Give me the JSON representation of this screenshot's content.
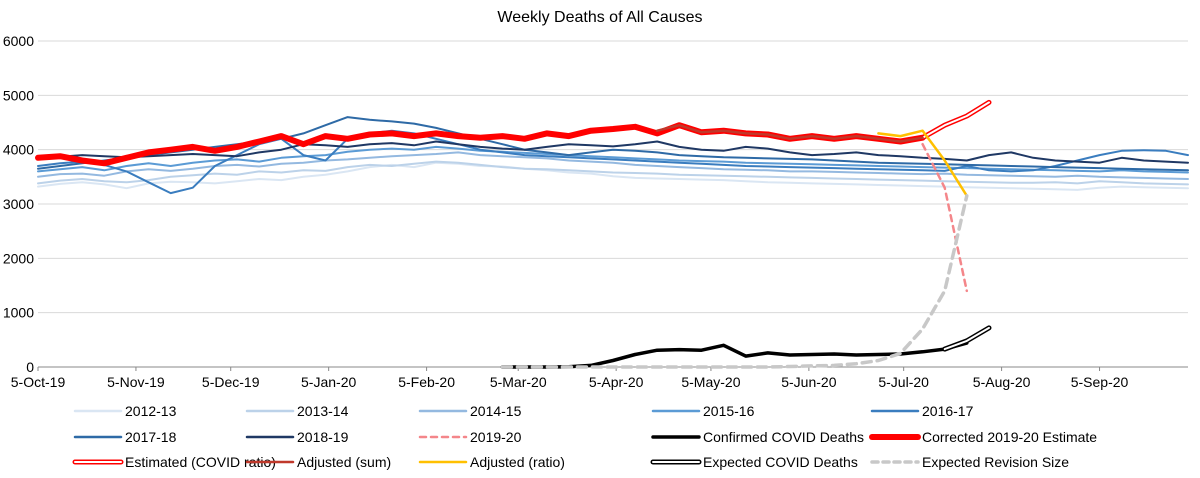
{
  "chart_data": {
    "type": "line",
    "title": "Weekly Deaths of All Causes",
    "xlabel": "",
    "ylabel": "",
    "ylim": [
      0,
      6000
    ],
    "yticks": [
      0,
      1000,
      2000,
      3000,
      4000,
      5000,
      6000
    ],
    "x_start": "2019-10-05",
    "x_end": "2020-10-03",
    "x_weeks": 52,
    "xtick_labels": [
      "5-Oct-19",
      "5-Nov-19",
      "5-Dec-19",
      "5-Jan-20",
      "5-Feb-20",
      "5-Mar-20",
      "5-Apr-20",
      "5-May-20",
      "5-Jun-20",
      "5-Jul-20",
      "5-Aug-20",
      "5-Sep-20"
    ],
    "xtick_dates": [
      "2019-10-05",
      "2019-11-05",
      "2019-12-05",
      "2020-01-05",
      "2020-02-05",
      "2020-03-05",
      "2020-04-05",
      "2020-05-05",
      "2020-06-05",
      "2020-07-05",
      "2020-08-05",
      "2020-09-05"
    ],
    "grid": "horizontal",
    "legend_position": "bottom",
    "series": [
      {
        "name": "2012-13",
        "color": "#dae6f3",
        "style": "solid",
        "values": [
          3320,
          3370,
          3400,
          3360,
          3290,
          3380,
          3410,
          3400,
          3380,
          3420,
          3460,
          3440,
          3500,
          3540,
          3600,
          3680,
          3720,
          3680,
          3760,
          3740,
          3700,
          3690,
          3650,
          3620,
          3580,
          3560,
          3510,
          3480,
          3470,
          3460,
          3450,
          3440,
          3420,
          3400,
          3390,
          3380,
          3370,
          3360,
          3350,
          3340,
          3330,
          3320,
          3310,
          3300,
          3290,
          3280,
          3270,
          3260,
          3300,
          3320,
          3310,
          3300,
          3290
        ]
      },
      {
        "name": "2013-14",
        "color": "#bcd2e9",
        "style": "solid",
        "values": [
          3380,
          3430,
          3460,
          3420,
          3400,
          3440,
          3500,
          3530,
          3560,
          3540,
          3600,
          3580,
          3620,
          3610,
          3680,
          3720,
          3700,
          3740,
          3780,
          3760,
          3720,
          3680,
          3650,
          3640,
          3620,
          3600,
          3580,
          3570,
          3560,
          3540,
          3530,
          3520,
          3510,
          3500,
          3490,
          3480,
          3470,
          3460,
          3450,
          3440,
          3430,
          3420,
          3410,
          3400,
          3390,
          3390,
          3400,
          3380,
          3420,
          3400,
          3380,
          3370,
          3360
        ]
      },
      {
        "name": "2014-15",
        "color": "#94b9e0",
        "style": "solid",
        "values": [
          3500,
          3550,
          3560,
          3520,
          3600,
          3640,
          3610,
          3650,
          3700,
          3720,
          3690,
          3740,
          3760,
          3800,
          3820,
          3850,
          3880,
          3900,
          3920,
          3950,
          3900,
          3880,
          3860,
          3840,
          3800,
          3780,
          3760,
          3720,
          3700,
          3680,
          3660,
          3640,
          3630,
          3620,
          3600,
          3600,
          3590,
          3580,
          3570,
          3560,
          3550,
          3560,
          3540,
          3530,
          3520,
          3510,
          3500,
          3520,
          3500,
          3490,
          3480,
          3470,
          3460
        ]
      },
      {
        "name": "2015-16",
        "color": "#5b9bd5",
        "style": "solid",
        "values": [
          3600,
          3640,
          3680,
          3620,
          3700,
          3750,
          3700,
          3760,
          3800,
          3820,
          3780,
          3850,
          3880,
          3900,
          3960,
          4000,
          4020,
          4000,
          4050,
          4020,
          3980,
          3960,
          3940,
          3920,
          3900,
          3880,
          3860,
          3840,
          3820,
          3800,
          3790,
          3780,
          3760,
          3750,
          3740,
          3730,
          3720,
          3710,
          3700,
          3690,
          3680,
          3670,
          3660,
          3650,
          3640,
          3630,
          3620,
          3610,
          3600,
          3620,
          3600,
          3590,
          3580
        ]
      },
      {
        "name": "2016-17",
        "color": "#3a7dbf",
        "style": "solid",
        "values": [
          3700,
          3750,
          3780,
          3720,
          3600,
          3400,
          3200,
          3300,
          3700,
          3900,
          4100,
          4200,
          3900,
          3800,
          4200,
          4300,
          4350,
          4300,
          4200,
          4100,
          4000,
          3950,
          3900,
          3880,
          3860,
          3840,
          3820,
          3800,
          3780,
          3760,
          3740,
          3720,
          3700,
          3690,
          3680,
          3670,
          3660,
          3650,
          3640,
          3630,
          3620,
          3610,
          3700,
          3620,
          3600,
          3620,
          3700,
          3800,
          3900,
          3980,
          3990,
          3980,
          3900
        ]
      },
      {
        "name": "2017-18",
        "color": "#2e6aa6",
        "style": "solid",
        "values": [
          3650,
          3700,
          3750,
          3800,
          3850,
          3900,
          3950,
          4000,
          4050,
          4100,
          4150,
          4200,
          4300,
          4450,
          4600,
          4550,
          4520,
          4480,
          4400,
          4300,
          4200,
          4100,
          4000,
          3950,
          3900,
          3950,
          4000,
          3980,
          3950,
          3900,
          3880,
          3860,
          3850,
          3840,
          3830,
          3820,
          3800,
          3780,
          3760,
          3750,
          3740,
          3730,
          3720,
          3710,
          3700,
          3690,
          3680,
          3670,
          3660,
          3650,
          3640,
          3630,
          3620
        ]
      },
      {
        "name": "2018-19",
        "color": "#1f3864",
        "style": "solid",
        "values": [
          3850,
          3870,
          3900,
          3880,
          3860,
          3880,
          3900,
          3920,
          3900,
          3880,
          3950,
          4000,
          4100,
          4080,
          4050,
          4100,
          4120,
          4080,
          4150,
          4100,
          4050,
          4020,
          4000,
          4050,
          4100,
          4080,
          4060,
          4100,
          4150,
          4050,
          4000,
          3980,
          4050,
          4020,
          3950,
          3900,
          3920,
          3950,
          3900,
          3880,
          3850,
          3830,
          3800,
          3900,
          3950,
          3850,
          3800,
          3780,
          3760,
          3850,
          3800,
          3780,
          3760
        ]
      },
      {
        "name": "2019-20",
        "color": "#f4868a",
        "style": "dashed",
        "values": [
          null,
          null,
          null,
          null,
          null,
          null,
          null,
          null,
          null,
          null,
          null,
          null,
          null,
          null,
          null,
          null,
          null,
          null,
          null,
          null,
          null,
          null,
          null,
          null,
          null,
          null,
          null,
          null,
          null,
          null,
          null,
          null,
          null,
          null,
          null,
          null,
          null,
          null,
          null,
          null,
          4100,
          3300,
          1400,
          null,
          null,
          null,
          null,
          null,
          null,
          null,
          null,
          null,
          null
        ]
      },
      {
        "name": "Confirmed COVID Deaths",
        "color": "#000000",
        "style": "solid",
        "values": [
          null,
          null,
          null,
          null,
          null,
          null,
          null,
          null,
          null,
          null,
          null,
          null,
          null,
          null,
          null,
          null,
          null,
          null,
          null,
          null,
          null,
          0,
          0,
          0,
          5,
          30,
          120,
          230,
          310,
          320,
          310,
          400,
          200,
          260,
          220,
          230,
          240,
          220,
          230,
          240,
          280,
          330,
          440,
          null,
          null,
          null,
          null,
          null,
          null,
          null,
          null,
          null,
          null
        ]
      },
      {
        "name": "Corrected 2019-20 Estimate",
        "color": "#ff0000",
        "style": "solid",
        "values": [
          3850,
          3880,
          3800,
          3750,
          3850,
          3950,
          4000,
          4050,
          3980,
          4050,
          4150,
          4250,
          4100,
          4250,
          4200,
          4280,
          4300,
          4250,
          4300,
          4250,
          4220,
          4250,
          4200,
          4300,
          4250,
          4350,
          4380,
          4420,
          4300,
          4450,
          4320,
          4350,
          4300,
          4280,
          4200,
          4250,
          4200,
          4250,
          4200,
          4150,
          4220,
          null,
          null,
          null,
          null,
          null,
          null,
          null,
          null,
          null,
          null,
          null,
          null
        ]
      },
      {
        "name": "Estimated (COVID ratio)",
        "color": "#ff0000",
        "style": "outline",
        "values": [
          null,
          null,
          null,
          null,
          null,
          null,
          null,
          null,
          null,
          null,
          null,
          null,
          null,
          null,
          null,
          null,
          null,
          null,
          null,
          null,
          null,
          null,
          null,
          null,
          null,
          null,
          null,
          null,
          null,
          null,
          null,
          null,
          null,
          null,
          null,
          null,
          null,
          null,
          null,
          null,
          4220,
          4450,
          4620,
          4870,
          null,
          null,
          null,
          null,
          null,
          null,
          null,
          null,
          null
        ]
      },
      {
        "name": "Adjusted (sum)",
        "color": "#c0392b",
        "style": "solid",
        "values": [
          null,
          null,
          null,
          null,
          null,
          null,
          null,
          null,
          null,
          null,
          null,
          null,
          null,
          null,
          null,
          null,
          null,
          null,
          null,
          null,
          null,
          null,
          null,
          null,
          null,
          null,
          null,
          null,
          4350,
          4450,
          4320,
          4350,
          4300,
          4280,
          4200,
          4250,
          4200,
          4250,
          4200,
          4150,
          4220,
          null,
          null,
          null,
          null,
          null,
          null,
          null,
          null,
          null,
          null,
          null,
          null
        ]
      },
      {
        "name": "Adjusted (ratio)",
        "color": "#ffc000",
        "style": "solid",
        "values": [
          null,
          null,
          null,
          null,
          null,
          null,
          null,
          null,
          null,
          null,
          null,
          null,
          null,
          null,
          null,
          null,
          null,
          null,
          null,
          null,
          null,
          null,
          null,
          null,
          null,
          null,
          null,
          null,
          null,
          null,
          null,
          null,
          null,
          null,
          null,
          null,
          null,
          null,
          4300,
          4250,
          4350,
          3800,
          3150,
          null,
          null,
          null,
          null,
          null,
          null,
          null,
          null,
          null,
          null
        ]
      },
      {
        "name": "Expected COVID Deaths",
        "color": "#000000",
        "style": "outline",
        "values": [
          null,
          null,
          null,
          null,
          null,
          null,
          null,
          null,
          null,
          null,
          null,
          null,
          null,
          null,
          null,
          null,
          null,
          null,
          null,
          null,
          null,
          null,
          null,
          null,
          null,
          null,
          null,
          null,
          null,
          null,
          null,
          null,
          null,
          null,
          null,
          null,
          null,
          null,
          null,
          null,
          null,
          330,
          480,
          720,
          null,
          null,
          null,
          null,
          null,
          null,
          null,
          null,
          null
        ]
      },
      {
        "name": "Expected Revision Size",
        "color": "#c8c8c8",
        "style": "dashed",
        "values": [
          null,
          null,
          null,
          null,
          null,
          null,
          null,
          null,
          null,
          null,
          null,
          null,
          null,
          null,
          null,
          null,
          null,
          null,
          null,
          null,
          null,
          0,
          0,
          0,
          0,
          0,
          0,
          0,
          0,
          0,
          0,
          0,
          0,
          0,
          10,
          20,
          30,
          60,
          120,
          250,
          700,
          1400,
          3150,
          null,
          null,
          null,
          null,
          null,
          null,
          null,
          null,
          null,
          null
        ]
      }
    ]
  }
}
